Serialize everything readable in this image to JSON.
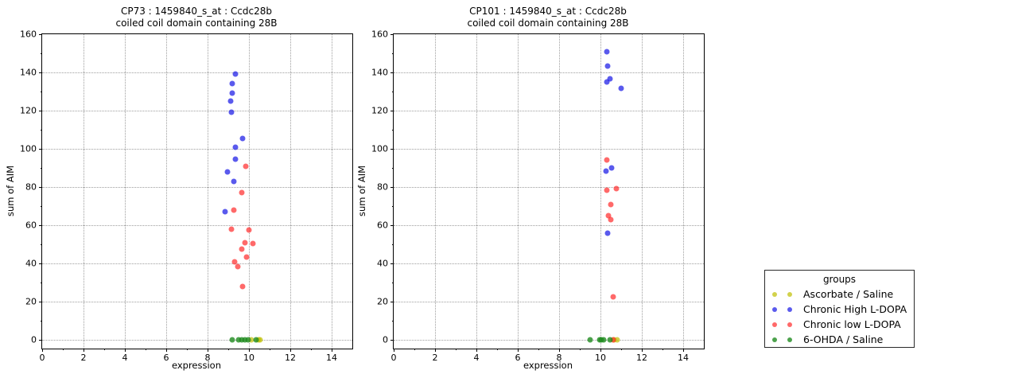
{
  "colors": {
    "yellow": "rgba(191,191,0,0.7)",
    "blue": "rgba(26,26,230,0.72)",
    "red": "rgba(255,42,42,0.7)",
    "green": "rgba(31,139,31,0.8)"
  },
  "legend": {
    "title": "groups",
    "entries": [
      {
        "label": "Ascorbate / Saline",
        "color": "yellow"
      },
      {
        "label": "Chronic High L-DOPA",
        "color": "blue"
      },
      {
        "label": "Chronic low L-DOPA",
        "color": "red"
      },
      {
        "label": "6-OHDA / Saline",
        "color": "green"
      }
    ]
  },
  "chart_data": [
    {
      "type": "scatter",
      "title_line1": "CP73 : 1459840_s_at : Ccdc28b",
      "title_line2": "coiled coil domain containing 28B",
      "xlabel": "expression",
      "ylabel": "sum of AIM",
      "xlim": [
        0,
        15
      ],
      "ylim": [
        -4.5,
        160
      ],
      "xticks": [
        0,
        2,
        4,
        6,
        8,
        10,
        12,
        14
      ],
      "yticks": [
        0,
        20,
        40,
        60,
        80,
        100,
        120,
        140,
        160
      ],
      "xminor_step": 1,
      "yminor_step": 10,
      "grid": "dotted",
      "series": [
        {
          "name": "Ascorbate / Saline",
          "color": "yellow",
          "points": [
            [
              10.1,
              0
            ],
            [
              10.45,
              0
            ],
            [
              10.55,
              0
            ]
          ]
        },
        {
          "name": "Chronic High L-DOPA",
          "color": "blue",
          "points": [
            [
              9.35,
              139
            ],
            [
              9.2,
              134
            ],
            [
              9.2,
              129
            ],
            [
              9.1,
              125
            ],
            [
              9.15,
              119
            ],
            [
              9.7,
              105.5
            ],
            [
              9.35,
              101
            ],
            [
              9.35,
              94.5
            ],
            [
              8.95,
              88
            ],
            [
              9.25,
              83
            ],
            [
              8.85,
              67
            ]
          ]
        },
        {
          "name": "Chronic low L-DOPA",
          "color": "red",
          "points": [
            [
              9.85,
              91
            ],
            [
              9.65,
              77
            ],
            [
              9.25,
              68
            ],
            [
              9.15,
              58
            ],
            [
              10.0,
              57.5
            ],
            [
              9.8,
              51
            ],
            [
              10.2,
              50.5
            ],
            [
              9.65,
              47.5
            ],
            [
              9.9,
              43.5
            ],
            [
              9.3,
              41
            ],
            [
              9.45,
              38.5
            ],
            [
              9.7,
              28
            ]
          ]
        },
        {
          "name": "6-OHDA / Saline",
          "color": "green",
          "points": [
            [
              9.2,
              0
            ],
            [
              9.5,
              0
            ],
            [
              9.65,
              0
            ],
            [
              9.8,
              0
            ],
            [
              9.95,
              0
            ],
            [
              10.35,
              0
            ]
          ]
        }
      ]
    },
    {
      "type": "scatter",
      "title_line1": "CP101 : 1459840_s_at : Ccdc28b",
      "title_line2": "coiled coil domain containing 28B",
      "xlabel": "expression",
      "ylabel": "sum of AIM",
      "xlim": [
        0,
        15
      ],
      "ylim": [
        -4.5,
        160
      ],
      "xticks": [
        0,
        2,
        4,
        6,
        8,
        10,
        12,
        14
      ],
      "yticks": [
        0,
        20,
        40,
        60,
        80,
        100,
        120,
        140,
        160
      ],
      "xminor_step": 1,
      "yminor_step": 10,
      "grid": "dotted",
      "series": [
        {
          "name": "Ascorbate / Saline",
          "color": "yellow",
          "points": [
            [
              10.65,
              0
            ],
            [
              10.8,
              0
            ]
          ]
        },
        {
          "name": "Chronic High L-DOPA",
          "color": "blue",
          "points": [
            [
              10.3,
              151
            ],
            [
              10.35,
              143.5
            ],
            [
              10.45,
              136.5
            ],
            [
              10.3,
              135
            ],
            [
              11.0,
              131.5
            ],
            [
              10.55,
              90
            ],
            [
              10.25,
              88.5
            ],
            [
              10.35,
              56
            ]
          ]
        },
        {
          "name": "Chronic low L-DOPA",
          "color": "red",
          "points": [
            [
              10.3,
              94
            ],
            [
              10.3,
              78.5
            ],
            [
              10.75,
              79
            ],
            [
              10.5,
              71
            ],
            [
              10.4,
              65
            ],
            [
              10.5,
              63
            ],
            [
              10.6,
              22.5
            ],
            [
              10.6,
              0
            ]
          ]
        },
        {
          "name": "6-OHDA / Saline",
          "color": "green",
          "points": [
            [
              9.5,
              0
            ],
            [
              9.95,
              0
            ],
            [
              10.05,
              0
            ],
            [
              10.15,
              0
            ],
            [
              10.45,
              0
            ]
          ]
        }
      ]
    }
  ]
}
